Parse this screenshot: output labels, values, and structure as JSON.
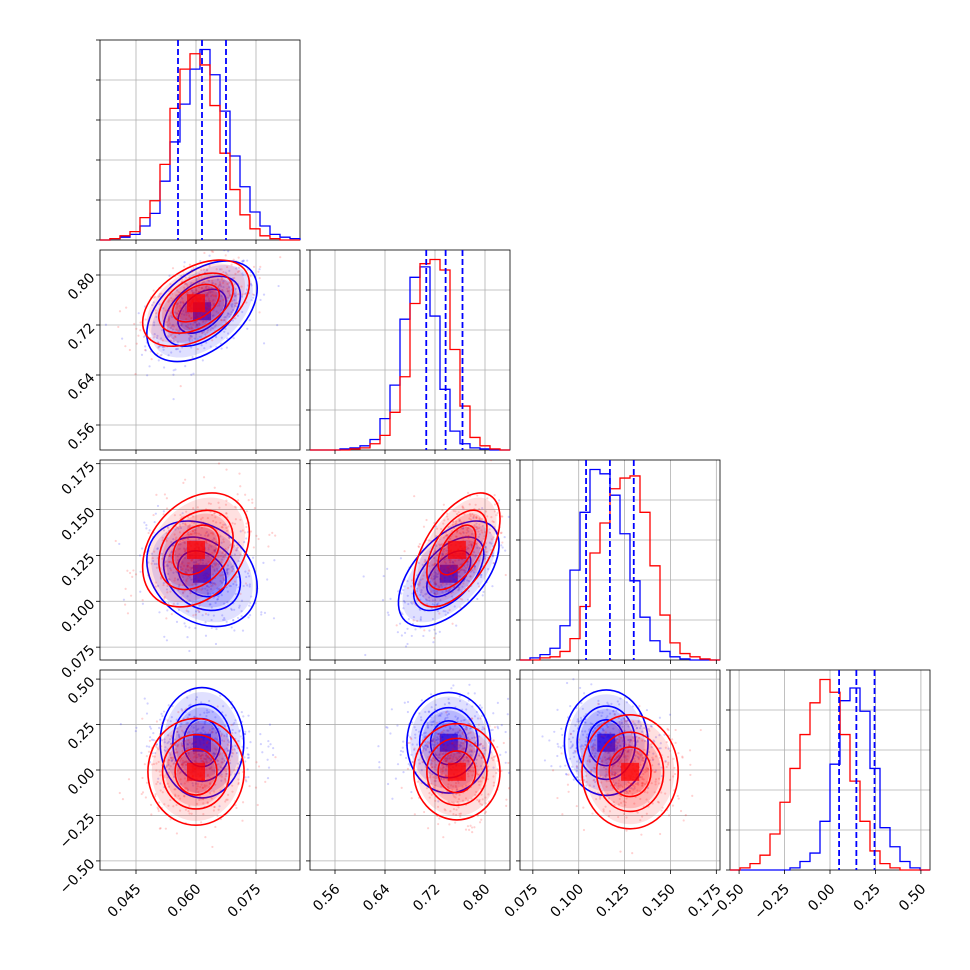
{
  "chart_data": {
    "type": "corner",
    "grid": true,
    "colors": {
      "series_a": "#0000ff",
      "series_b": "#ff0000"
    },
    "series": [
      {
        "color": "#0000ff",
        "means": [
          0.0615,
          0.742,
          0.115,
          0.15
        ]
      },
      {
        "color": "#ff0000",
        "means": [
          0.06,
          0.755,
          0.128,
          -0.01
        ]
      }
    ],
    "parameters": [
      {
        "range": [
          0.036,
          0.086
        ],
        "ticks": [
          "0.045",
          "0.060",
          "0.075"
        ],
        "tick_values": [
          0.045,
          0.06,
          0.075
        ],
        "quantiles": [
          0.0555,
          0.0615,
          0.0675
        ],
        "hist_series_a": [
          0,
          1,
          2,
          4,
          10,
          19,
          42,
          70,
          97,
          122,
          136,
          118,
          92,
          60,
          38,
          20,
          10,
          4,
          2,
          1
        ],
        "hist_series_b": [
          0,
          1,
          3,
          6,
          16,
          28,
          54,
          94,
          122,
          133,
          125,
          96,
          62,
          36,
          18,
          8,
          3,
          1,
          0,
          0
        ]
      },
      {
        "range": [
          0.52,
          0.84
        ],
        "ticks": [
          "0.56",
          "0.64",
          "0.72",
          "0.80"
        ],
        "tick_values": [
          0.56,
          0.64,
          0.72,
          0.8
        ],
        "quantiles": [
          0.706,
          0.737,
          0.764
        ],
        "hist_series_a": [
          0,
          0,
          0,
          1,
          2,
          4,
          10,
          30,
          62,
          125,
          165,
          175,
          128,
          58,
          18,
          6,
          2,
          1,
          0,
          0
        ],
        "hist_series_b": [
          0,
          0,
          0,
          0,
          1,
          2,
          6,
          14,
          36,
          70,
          140,
          178,
          182,
          172,
          96,
          42,
          12,
          4,
          1,
          0
        ]
      },
      {
        "range": [
          0.068,
          0.177
        ],
        "ticks": [
          "0.075",
          "0.100",
          "0.125",
          "0.150",
          "0.175"
        ],
        "tick_values": [
          0.075,
          0.1,
          0.125,
          0.15,
          0.175
        ],
        "quantiles": [
          0.104,
          0.117,
          0.13
        ],
        "hist_series_a": [
          0,
          2,
          5,
          11,
          32,
          84,
          138,
          178,
          174,
          154,
          118,
          74,
          40,
          18,
          8,
          3,
          1,
          0,
          0,
          0
        ],
        "hist_series_b": [
          0,
          0,
          2,
          3,
          8,
          20,
          50,
          100,
          128,
          160,
          170,
          172,
          138,
          88,
          42,
          16,
          6,
          3,
          1,
          0
        ],
        "hist_series_b_color_note": ""
      },
      {
        "range": [
          -0.55,
          0.55
        ],
        "ticks": [
          "−0.50",
          "−0.25",
          "0.00",
          "0.25",
          "0.50"
        ],
        "tick_values": [
          -0.5,
          -0.25,
          0.0,
          0.25,
          0.5
        ],
        "quantiles": [
          0.05,
          0.145,
          0.245
        ],
        "hist_series_a": [
          0,
          0,
          0,
          0,
          0,
          0,
          2,
          8,
          16,
          46,
          100,
          160,
          172,
          150,
          96,
          40,
          22,
          8,
          2,
          0
        ],
        "hist_series_b": [
          0,
          2,
          6,
          14,
          34,
          64,
          96,
          128,
          158,
          180,
          168,
          128,
          84,
          46,
          18,
          6,
          2,
          0,
          0,
          0
        ]
      }
    ],
    "correlations": {
      "series_a": {
        "1-0": 0.45,
        "2-0": -0.25,
        "2-1": 0.55,
        "3-0": 0.0,
        "3-1": 0.0,
        "3-2": 0.0
      },
      "series_b": {
        "1-0": 0.45,
        "2-0": 0.3,
        "2-1": 0.55,
        "3-0": 0.0,
        "3-1": 0.0,
        "3-2": 0.0
      }
    },
    "spreads": {
      "series_a": [
        0.006,
        0.035,
        0.0125,
        0.1
      ],
      "series_b": [
        0.0058,
        0.03,
        0.0135,
        0.115
      ]
    }
  }
}
